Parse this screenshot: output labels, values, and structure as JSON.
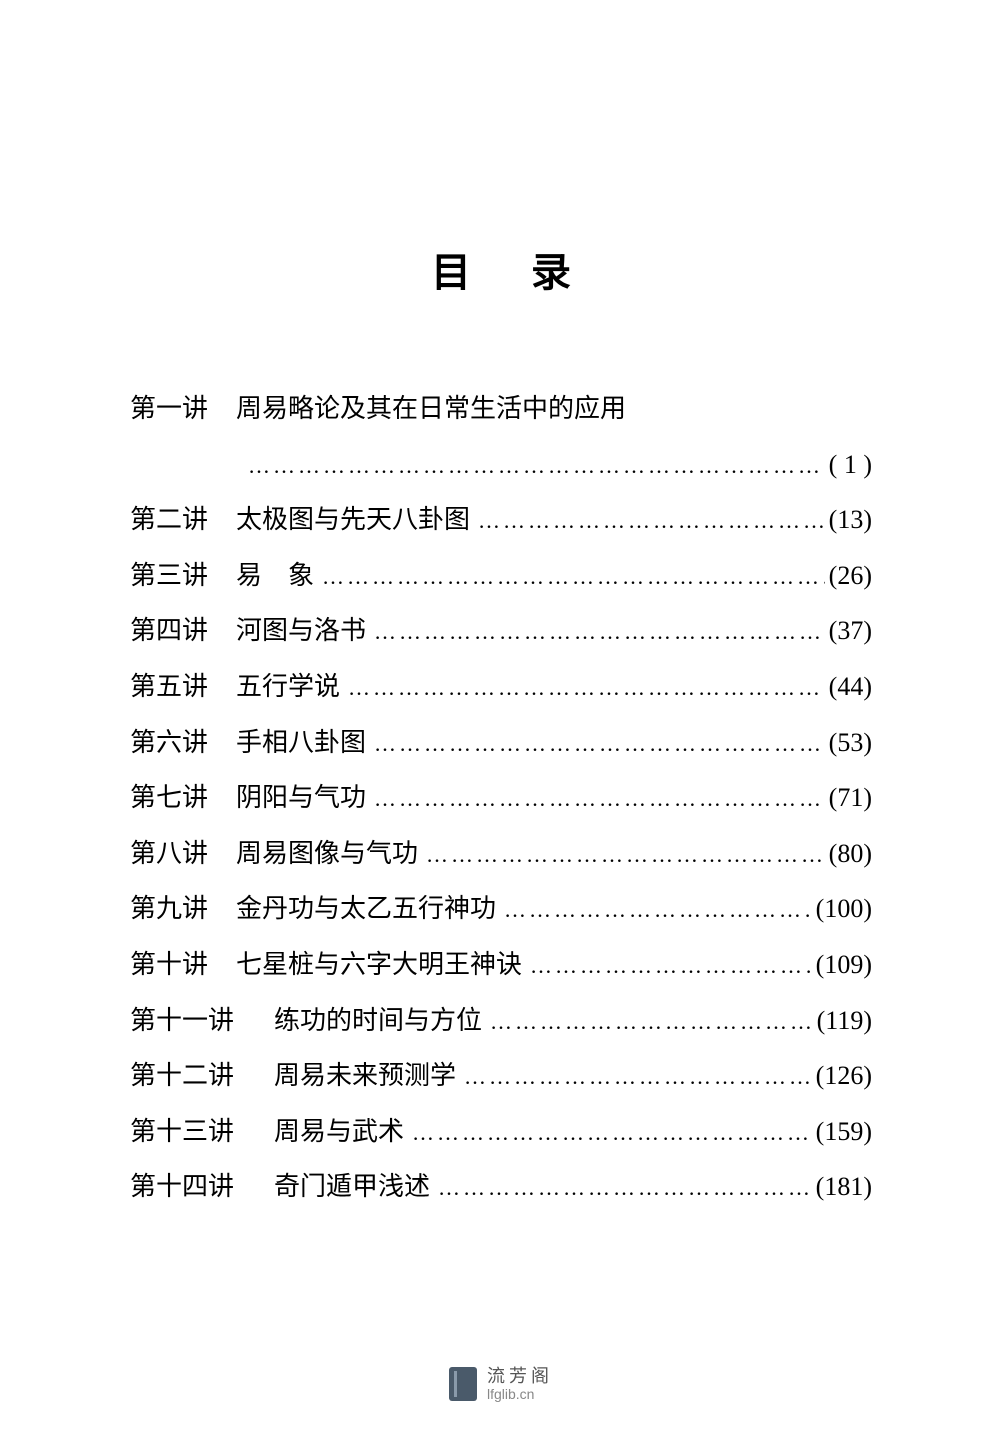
{
  "page": {
    "title": "目录",
    "background_color": "#ffffff",
    "text_color": "#000000",
    "title_fontsize": 40,
    "body_fontsize": 26,
    "font_family": "SimSun"
  },
  "toc": [
    {
      "label": "第一讲",
      "title": "周易略论及其在日常生活中的应用",
      "page": "( 1 )",
      "continuation": true
    },
    {
      "label": "第二讲",
      "title": "太极图与先天八卦图",
      "page": "(13)"
    },
    {
      "label": "第三讲",
      "title": "易　象",
      "page": "(26)"
    },
    {
      "label": "第四讲",
      "title": "河图与洛书",
      "page": "(37)"
    },
    {
      "label": "第五讲",
      "title": "五行学说",
      "page": "(44)"
    },
    {
      "label": "第六讲",
      "title": "手相八卦图",
      "page": "(53)"
    },
    {
      "label": "第七讲",
      "title": "阴阳与气功",
      "page": "(71)"
    },
    {
      "label": "第八讲",
      "title": "周易图像与气功",
      "page": "(80)"
    },
    {
      "label": "第九讲",
      "title": "金丹功与太乙五行神功",
      "page": "(100)"
    },
    {
      "label": "第十讲",
      "title": "七星桩与六字大明王神诀",
      "page": "(109)"
    },
    {
      "label": "第十一讲",
      "title": "练功的时间与方位",
      "page": "(119)",
      "wide": true
    },
    {
      "label": "第十二讲",
      "title": "周易未来预测学",
      "page": "(126)",
      "wide": true
    },
    {
      "label": "第十三讲",
      "title": "周易与武术",
      "page": "(159)",
      "wide": true
    },
    {
      "label": "第十四讲",
      "title": "奇门遁甲浅述",
      "page": "(181)",
      "wide": true
    }
  ],
  "watermark": {
    "name_cn": "流芳阁",
    "url": "lfglib.cn",
    "icon_color": "#4a5a6a",
    "text_color": "#555555",
    "url_color": "#888888"
  },
  "dots_char": "…"
}
